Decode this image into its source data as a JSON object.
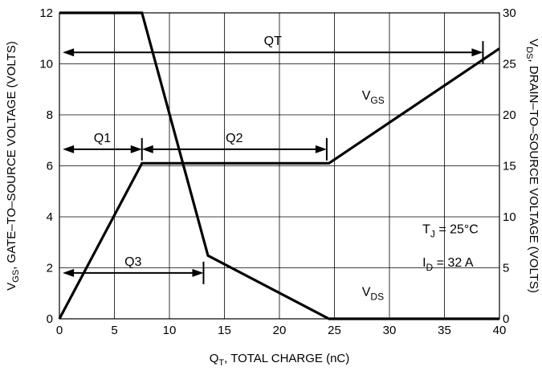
{
  "chart_data": {
    "type": "line",
    "title": "",
    "xlabel_main": "Q",
    "xlabel_sub": "T",
    "xlabel_rest": ", TOTAL CHARGE (nC)",
    "ylabel_main": "V",
    "ylabel_sub": "GS",
    "ylabel_rest": ", GATE–TO–SOURCE VOLTAGE (VOLTS)",
    "y2label_main": "V",
    "y2label_sub": "DS",
    "y2label_rest": ", DRAIN–TO–SOURCE VOLTAGE (VOLTS)",
    "xlim": [
      0,
      40
    ],
    "ylim": [
      0,
      12
    ],
    "y2lim": [
      0,
      30
    ],
    "x_ticks": [
      "0",
      "5",
      "10",
      "15",
      "20",
      "25",
      "30",
      "35",
      "40"
    ],
    "y_ticks": [
      "0",
      "2",
      "4",
      "6",
      "8",
      "10",
      "12"
    ],
    "y2_ticks": [
      "0",
      "5",
      "10",
      "15",
      "20",
      "25",
      "30"
    ],
    "grid": true,
    "series": [
      {
        "name": "VGS",
        "label_main": "V",
        "label_sub": "GS",
        "axis": "left",
        "x": [
          0,
          7.5,
          24.5,
          40
        ],
        "y": [
          0,
          6.1,
          6.1,
          10.6
        ]
      },
      {
        "name": "VDS",
        "label_main": "V",
        "label_sub": "DS",
        "axis": "right",
        "x": [
          0,
          7.5,
          13.5,
          24.5,
          40
        ],
        "y": [
          30,
          30,
          6.2,
          0,
          0
        ]
      }
    ],
    "annotations": {
      "QT": {
        "text": "QT",
        "x1": 0.3,
        "x2": 38.5,
        "y": 10.45
      },
      "Q1": {
        "text": "Q1",
        "x1": 0.3,
        "x2": 7.5,
        "y": 6.65
      },
      "Q2": {
        "text": "Q2",
        "x1": 7.5,
        "x2": 24.3,
        "y": 6.65
      },
      "Q3": {
        "text": "Q3",
        "x1": 0.3,
        "x2": 13.1,
        "y": 1.8
      }
    },
    "conditions": {
      "tj_main": "T",
      "tj_sub": "J",
      "tj_rest": " = 25°C",
      "id_main": "I",
      "id_sub": "D",
      "id_rest": " = 32 A"
    }
  }
}
